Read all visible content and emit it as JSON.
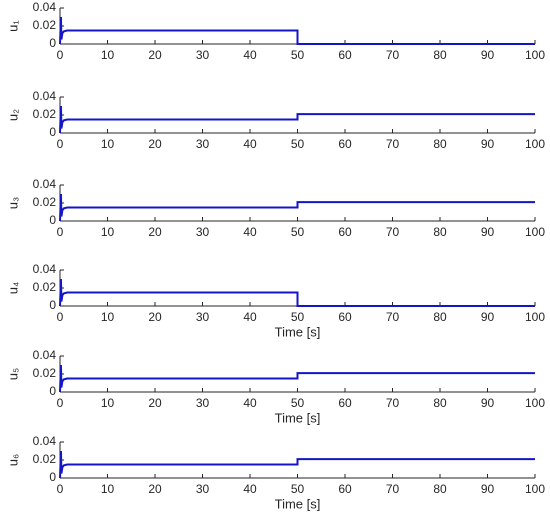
{
  "chart_data": [
    {
      "type": "line",
      "ylabel": "u₁",
      "x": [
        0,
        0.2,
        0.3,
        0.5,
        0.8,
        1.5,
        50,
        50,
        100
      ],
      "values": [
        0,
        0.03,
        0.005,
        0.012,
        0.014,
        0.015,
        0.015,
        0,
        0
      ],
      "color": "#1414c8",
      "xlim": [
        0,
        100
      ],
      "ylim": [
        0,
        0.04
      ],
      "xticks": [
        0,
        10,
        20,
        30,
        40,
        50,
        60,
        70,
        80,
        90,
        100
      ],
      "yticks": [
        0,
        0.02,
        0.04
      ]
    },
    {
      "type": "line",
      "ylabel": "u₂",
      "x": [
        0,
        0.2,
        0.3,
        0.5,
        0.8,
        1.5,
        50,
        50,
        100
      ],
      "values": [
        0,
        0.03,
        0.005,
        0.012,
        0.014,
        0.015,
        0.015,
        0.021,
        0.021
      ],
      "color": "#1414c8",
      "xlim": [
        0,
        100
      ],
      "ylim": [
        0,
        0.04
      ],
      "xticks": [
        0,
        10,
        20,
        30,
        40,
        50,
        60,
        70,
        80,
        90,
        100
      ],
      "yticks": [
        0,
        0.02,
        0.04
      ]
    },
    {
      "type": "line",
      "ylabel": "u₃",
      "x": [
        0,
        0.2,
        0.3,
        0.5,
        0.8,
        1.5,
        50,
        50,
        100
      ],
      "values": [
        0,
        0.03,
        0.005,
        0.012,
        0.014,
        0.015,
        0.015,
        0.021,
        0.021
      ],
      "color": "#1414c8",
      "xlim": [
        0,
        100
      ],
      "ylim": [
        0,
        0.04
      ],
      "xticks": [
        0,
        10,
        20,
        30,
        40,
        50,
        60,
        70,
        80,
        90,
        100
      ],
      "yticks": [
        0,
        0.02,
        0.04
      ]
    },
    {
      "type": "line",
      "ylabel": "u₄",
      "xlabel": "Time [s]",
      "x": [
        0,
        0.2,
        0.3,
        0.5,
        0.8,
        1.5,
        50,
        50,
        100
      ],
      "values": [
        0,
        0.03,
        0.005,
        0.012,
        0.014,
        0.015,
        0.015,
        0,
        0
      ],
      "color": "#1414c8",
      "xlim": [
        0,
        100
      ],
      "ylim": [
        0,
        0.04
      ],
      "xticks": [
        0,
        10,
        20,
        30,
        40,
        50,
        60,
        70,
        80,
        90,
        100
      ],
      "yticks": [
        0,
        0.02,
        0.04
      ]
    },
    {
      "type": "line",
      "ylabel": "u₅",
      "xlabel": "Time [s]",
      "x": [
        0,
        0.2,
        0.3,
        0.5,
        0.8,
        1.5,
        50,
        50,
        100
      ],
      "values": [
        0,
        0.03,
        0.005,
        0.012,
        0.014,
        0.015,
        0.015,
        0.021,
        0.021
      ],
      "color": "#1414c8",
      "xlim": [
        0,
        100
      ],
      "ylim": [
        0,
        0.04
      ],
      "xticks": [
        0,
        10,
        20,
        30,
        40,
        50,
        60,
        70,
        80,
        90,
        100
      ],
      "yticks": [
        0,
        0.02,
        0.04
      ]
    },
    {
      "type": "line",
      "ylabel": "u₆",
      "xlabel": "Time [s]",
      "x": [
        0,
        0.2,
        0.3,
        0.5,
        0.8,
        1.5,
        50,
        50,
        100
      ],
      "values": [
        0,
        0.03,
        0.005,
        0.012,
        0.014,
        0.015,
        0.015,
        0.021,
        0.021
      ],
      "color": "#1414c8",
      "xlim": [
        0,
        100
      ],
      "ylim": [
        0,
        0.04
      ],
      "xticks": [
        0,
        10,
        20,
        30,
        40,
        50,
        60,
        70,
        80,
        90,
        100
      ],
      "yticks": [
        0,
        0.02,
        0.04
      ]
    }
  ]
}
